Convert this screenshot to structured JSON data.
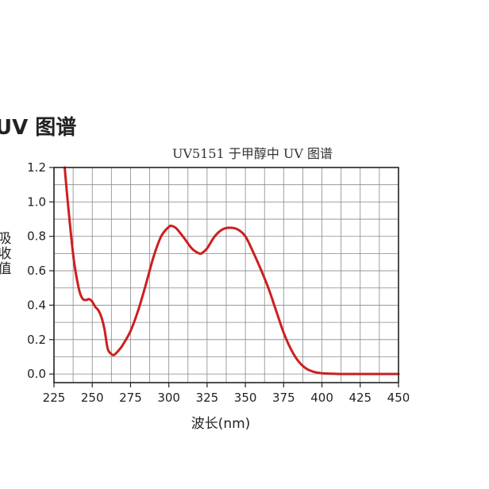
{
  "page": {
    "heading": "UV  图谱"
  },
  "colors": {
    "curve": "#cc1f1f",
    "grid": "#888888",
    "frame": "#222222"
  },
  "chart_data": {
    "type": "line",
    "title": "UV5151 于甲醇中 UV 图谱",
    "xlabel": "波长(nm)",
    "ylabel": [
      "吸",
      "收",
      "值"
    ],
    "xlim": [
      225,
      450
    ],
    "ylim": [
      -0.05,
      1.2
    ],
    "xticks": [
      225,
      250,
      275,
      300,
      325,
      350,
      375,
      400,
      425,
      450
    ],
    "xtick_labels": [
      "225",
      "250",
      "275",
      "300",
      "325",
      "350",
      "375",
      "400",
      "425",
      "450"
    ],
    "yticks": [
      0.0,
      0.2,
      0.4,
      0.6,
      0.8,
      1.0,
      1.2
    ],
    "ytick_labels": [
      "0.0",
      "0.2",
      "0.4",
      "0.6",
      "0.8",
      "1.0",
      "1.2"
    ],
    "grid": true,
    "series": [
      {
        "x": [
          232,
          234,
          236,
          238,
          240,
          242,
          244,
          246,
          248,
          250,
          252,
          254,
          256,
          258,
          260,
          262,
          264,
          266,
          268,
          270,
          275,
          280,
          285,
          290,
          295,
          300,
          302,
          305,
          310,
          315,
          320,
          322,
          325,
          330,
          335,
          340,
          345,
          350,
          355,
          360,
          365,
          370,
          375,
          380,
          385,
          390,
          395,
          400,
          410,
          420,
          430,
          440,
          450
        ],
        "y": [
          1.2,
          1.0,
          0.82,
          0.66,
          0.55,
          0.47,
          0.435,
          0.43,
          0.435,
          0.42,
          0.39,
          0.37,
          0.33,
          0.26,
          0.15,
          0.12,
          0.11,
          0.125,
          0.145,
          0.17,
          0.25,
          0.37,
          0.52,
          0.68,
          0.8,
          0.855,
          0.86,
          0.845,
          0.79,
          0.73,
          0.7,
          0.705,
          0.73,
          0.8,
          0.84,
          0.85,
          0.84,
          0.8,
          0.71,
          0.61,
          0.5,
          0.37,
          0.24,
          0.14,
          0.07,
          0.03,
          0.012,
          0.004,
          0.001,
          0.0,
          0.0,
          0.0,
          0.0
        ]
      }
    ]
  }
}
